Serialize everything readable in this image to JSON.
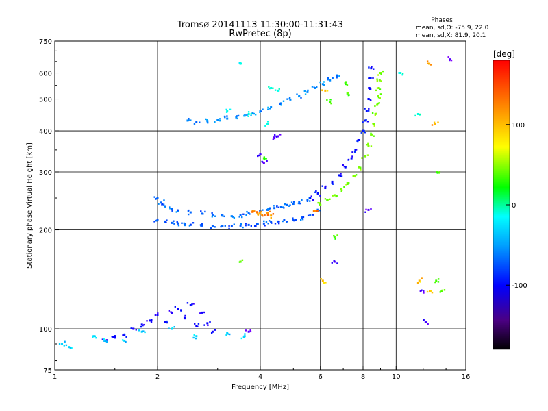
{
  "chart_data": {
    "type": "scatter",
    "title": "Tromsø 20141113 11:30:00-11:31:43",
    "subtitle": "RwPretec (8p)",
    "phase_header": "Phases",
    "phase_line_o": "mean, sd,O: -75.9, 22.0",
    "phase_line_x": "mean, sd,X: 81.9, 20.1",
    "xlabel": "Frequency [MHz]",
    "ylabel": "Stationary phase Virtual Height [km]",
    "x_scale": "log",
    "y_scale": "log",
    "xlim": [
      1,
      16
    ],
    "ylim": [
      75,
      750
    ],
    "x_ticks": [
      1,
      2,
      4,
      6,
      8,
      10,
      16
    ],
    "y_ticks": [
      75,
      100,
      200,
      300,
      400,
      500,
      600,
      750
    ],
    "x_gridlines": [
      2,
      4,
      6,
      8,
      10
    ],
    "y_gridlines": [
      100,
      200,
      300,
      400,
      500,
      600
    ],
    "grid": true,
    "colorbar": {
      "label": "[deg]",
      "min": -180,
      "max": 180,
      "ticks": [
        100,
        0,
        -100
      ],
      "placement": "right"
    },
    "series": [
      {
        "phase": -75,
        "points": [
          [
            2.0,
            215
          ],
          [
            2.1,
            212
          ],
          [
            2.2,
            210
          ],
          [
            2.3,
            209
          ],
          [
            2.4,
            208
          ],
          [
            2.5,
            207
          ],
          [
            2.7,
            206
          ],
          [
            2.9,
            205
          ],
          [
            3.1,
            205
          ],
          [
            3.3,
            205
          ],
          [
            3.5,
            206
          ],
          [
            3.7,
            207
          ],
          [
            3.9,
            208
          ],
          [
            4.1,
            209
          ],
          [
            4.3,
            211
          ],
          [
            4.5,
            212
          ],
          [
            4.7,
            214
          ],
          [
            5.0,
            215
          ],
          [
            5.3,
            218
          ],
          [
            5.6,
            222
          ],
          [
            5.9,
            228
          ]
        ]
      },
      {
        "phase": -70,
        "points": [
          [
            2.0,
            250
          ],
          [
            2.05,
            242
          ],
          [
            2.1,
            236
          ],
          [
            2.2,
            232
          ],
          [
            2.3,
            229
          ],
          [
            2.5,
            226
          ],
          [
            2.7,
            224
          ],
          [
            2.9,
            222
          ],
          [
            3.1,
            221
          ],
          [
            3.3,
            220
          ],
          [
            3.5,
            222
          ],
          [
            3.7,
            225
          ],
          [
            4.0,
            228
          ],
          [
            4.2,
            230
          ],
          [
            4.4,
            233
          ],
          [
            4.6,
            235
          ],
          [
            4.8,
            238
          ],
          [
            5.0,
            240
          ],
          [
            5.2,
            243
          ],
          [
            5.5,
            247
          ]
        ]
      },
      {
        "phase": -95,
        "points": [
          [
            5.6,
            250
          ],
          [
            5.9,
            258
          ],
          [
            6.2,
            268
          ],
          [
            6.5,
            280
          ],
          [
            6.8,
            293
          ],
          [
            7.1,
            310
          ],
          [
            7.4,
            330
          ],
          [
            7.6,
            350
          ],
          [
            7.8,
            375
          ],
          [
            8.0,
            400
          ],
          [
            8.1,
            430
          ],
          [
            8.2,
            460
          ],
          [
            8.3,
            500
          ],
          [
            8.35,
            540
          ],
          [
            8.4,
            580
          ],
          [
            8.45,
            620
          ]
        ]
      },
      {
        "phase": 75,
        "points": [
          [
            6.0,
            238
          ],
          [
            6.3,
            246
          ],
          [
            6.6,
            255
          ],
          [
            6.9,
            266
          ],
          [
            7.2,
            278
          ],
          [
            7.5,
            292
          ],
          [
            7.8,
            310
          ],
          [
            8.1,
            335
          ],
          [
            8.3,
            360
          ],
          [
            8.5,
            390
          ],
          [
            8.6,
            420
          ],
          [
            8.7,
            450
          ],
          [
            8.8,
            480
          ],
          [
            8.85,
            510
          ],
          [
            8.9,
            540
          ],
          [
            8.95,
            570
          ],
          [
            9.0,
            600
          ]
        ]
      },
      {
        "phase": -60,
        "points": [
          [
            2.45,
            430
          ],
          [
            2.6,
            425
          ],
          [
            2.8,
            428
          ],
          [
            3.0,
            432
          ],
          [
            3.2,
            436
          ],
          [
            3.4,
            440
          ],
          [
            3.6,
            445
          ],
          [
            3.8,
            452
          ],
          [
            4.0,
            460
          ],
          [
            4.3,
            472
          ],
          [
            4.6,
            485
          ],
          [
            4.9,
            498
          ],
          [
            5.2,
            510
          ],
          [
            5.5,
            525
          ],
          [
            5.8,
            540
          ],
          [
            6.1,
            555
          ],
          [
            6.4,
            570
          ],
          [
            6.7,
            590
          ]
        ]
      },
      {
        "phase": -100,
        "points": [
          [
            1.7,
            100
          ],
          [
            1.8,
            103
          ],
          [
            1.9,
            106
          ],
          [
            2.0,
            110
          ],
          [
            2.1,
            105
          ],
          [
            2.2,
            112
          ],
          [
            2.3,
            115
          ],
          [
            2.4,
            108
          ],
          [
            2.5,
            118
          ],
          [
            2.6,
            102
          ],
          [
            2.7,
            112
          ],
          [
            2.8,
            104
          ],
          [
            1.6,
            96
          ],
          [
            1.5,
            94
          ],
          [
            1.4,
            92
          ],
          [
            2.9,
            98
          ]
        ]
      },
      {
        "phase": -40,
        "points": [
          [
            1.05,
            90
          ],
          [
            1.1,
            88
          ],
          [
            1.3,
            95
          ],
          [
            1.4,
            92
          ],
          [
            1.6,
            92
          ],
          [
            1.8,
            98
          ],
          [
            2.2,
            100
          ],
          [
            2.6,
            95
          ],
          [
            3.2,
            97
          ],
          [
            3.6,
            95
          ]
        ]
      },
      {
        "phase": 140,
        "points": [
          [
            3.8,
            228
          ],
          [
            3.9,
            226
          ],
          [
            4.0,
            224
          ],
          [
            4.05,
            222
          ],
          [
            4.2,
            225
          ],
          [
            4.3,
            221
          ],
          [
            5.8,
            228
          ]
        ]
      },
      {
        "phase": -20,
        "points": [
          [
            3.5,
            640
          ],
          [
            4.3,
            540
          ],
          [
            4.5,
            530
          ],
          [
            4.2,
            420
          ],
          [
            3.7,
            450
          ],
          [
            3.2,
            460
          ],
          [
            10.3,
            600
          ],
          [
            11.6,
            450
          ]
        ]
      },
      {
        "phase": 60,
        "points": [
          [
            7.1,
            560
          ],
          [
            7.2,
            520
          ],
          [
            6.4,
            490
          ],
          [
            4.1,
            330
          ],
          [
            3.5,
            160
          ],
          [
            6.6,
            190
          ],
          [
            13.2,
            300
          ],
          [
            13.1,
            140
          ],
          [
            13.6,
            130
          ]
        ]
      },
      {
        "phase": 130,
        "points": [
          [
            6.1,
            140
          ],
          [
            6.2,
            530
          ],
          [
            12.5,
            640
          ],
          [
            13.0,
            420
          ],
          [
            12.6,
            130
          ],
          [
            11.7,
            140
          ]
        ]
      },
      {
        "phase": -120,
        "points": [
          [
            4.5,
            385
          ],
          [
            4.4,
            380
          ],
          [
            4.1,
            320
          ],
          [
            4.0,
            340
          ],
          [
            6.6,
            160
          ],
          [
            8.3,
            230
          ],
          [
            12.2,
            105
          ],
          [
            11.8,
            130
          ],
          [
            14.4,
            660
          ],
          [
            3.7,
            98
          ]
        ]
      }
    ]
  }
}
